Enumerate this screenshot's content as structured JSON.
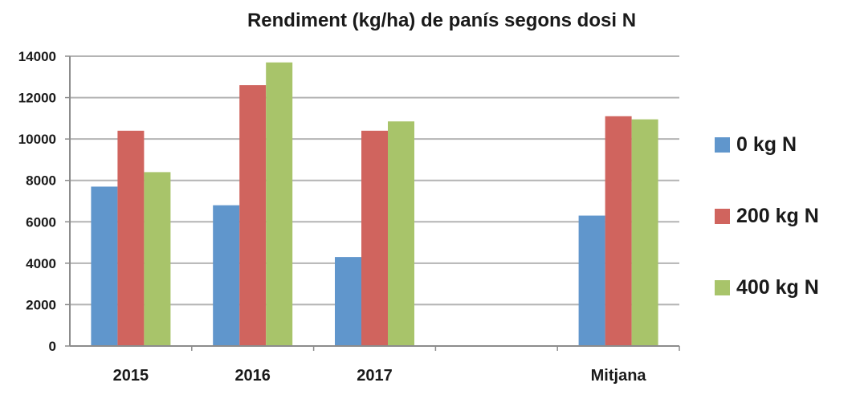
{
  "chart_data": {
    "type": "bar",
    "title": "Rendiment (kg/ha) de panís segons dosi N",
    "categories": [
      "2015",
      "2016",
      "2017",
      "",
      "Mitjana"
    ],
    "series": [
      {
        "name": "0 kg N",
        "color": "#6096CC",
        "values": [
          7700,
          6800,
          4300,
          null,
          6300
        ]
      },
      {
        "name": "200 kg N",
        "color": "#D0645E",
        "values": [
          10400,
          12600,
          10400,
          null,
          11100
        ]
      },
      {
        "name": "400 kg N",
        "color": "#A8C46A",
        "values": [
          8400,
          13700,
          10850,
          null,
          10950
        ]
      }
    ],
    "ylim": [
      0,
      14000
    ],
    "yticks": [
      "0",
      "2000",
      "4000",
      "6000",
      "8000",
      "10000",
      "12000",
      "14000"
    ],
    "grid": true,
    "legend_position": "right"
  }
}
